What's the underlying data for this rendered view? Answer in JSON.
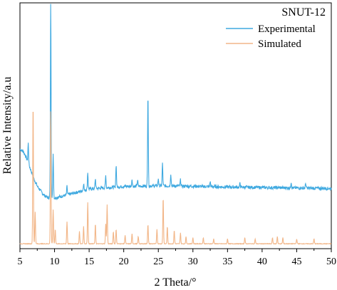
{
  "chart_data": {
    "type": "line",
    "title": "SNUT-12",
    "xlabel": "2 Theta/°",
    "ylabel": "Relative Intensity/a.u",
    "xlim": [
      5,
      50
    ],
    "ylim": [
      0,
      100
    ],
    "y_ticks_shown": false,
    "grid": false,
    "legend_position": "top-right",
    "x_ticks": [
      5,
      10,
      15,
      20,
      25,
      30,
      35,
      40,
      45,
      50
    ],
    "x_tick_labels": [
      "5",
      "10",
      "15",
      "20",
      "25",
      "30",
      "35",
      "40",
      "45",
      "50"
    ],
    "series": [
      {
        "name": "Experimental",
        "color": "#3fa9e0",
        "baseline": [
          [
            5.0,
            40.5
          ],
          [
            5.5,
            39.5
          ],
          [
            6.0,
            36.5
          ],
          [
            6.5,
            32.5
          ],
          [
            7.0,
            28.5
          ],
          [
            7.5,
            25.5
          ],
          [
            8.0,
            23.5
          ],
          [
            8.5,
            21.7
          ],
          [
            9.0,
            20.8
          ],
          [
            10.0,
            20.6
          ],
          [
            12.0,
            22.0
          ],
          [
            15.0,
            24.3
          ],
          [
            20.0,
            25.3
          ],
          [
            25.0,
            25.6
          ],
          [
            30.0,
            25.4
          ],
          [
            35.0,
            25.1
          ],
          [
            40.0,
            24.9
          ],
          [
            45.0,
            24.7
          ],
          [
            50.0,
            24.5
          ]
        ],
        "peaks": [
          [
            6.2,
            8.0
          ],
          [
            9.45,
            80.0
          ],
          [
            9.8,
            18.0
          ],
          [
            11.8,
            3.5
          ],
          [
            14.2,
            3.0
          ],
          [
            14.8,
            7.0
          ],
          [
            15.9,
            4.0
          ],
          [
            17.4,
            5.0
          ],
          [
            18.9,
            9.0
          ],
          [
            21.2,
            3.0
          ],
          [
            22.0,
            2.5
          ],
          [
            23.5,
            38.0
          ],
          [
            25.0,
            3.0
          ],
          [
            25.6,
            9.0
          ],
          [
            26.8,
            5.0
          ],
          [
            28.2,
            2.5
          ],
          [
            32.5,
            2.0
          ],
          [
            36.8,
            1.5
          ],
          [
            44.2,
            2.5
          ],
          [
            46.3,
            2.0
          ]
        ]
      },
      {
        "name": "Simulated",
        "color": "#f2b688",
        "baseline": [
          [
            5.0,
            2.0
          ],
          [
            20.0,
            2.0
          ],
          [
            50.0,
            2.0
          ]
        ],
        "peaks": [
          [
            6.9,
            58.0
          ],
          [
            7.2,
            13.0
          ],
          [
            9.45,
            55.0
          ],
          [
            9.8,
            14.0
          ],
          [
            10.1,
            6.0
          ],
          [
            11.8,
            9.0
          ],
          [
            13.6,
            5.0
          ],
          [
            14.2,
            7.0
          ],
          [
            14.8,
            17.0
          ],
          [
            15.9,
            8.0
          ],
          [
            17.4,
            8.0
          ],
          [
            17.6,
            16.0
          ],
          [
            18.5,
            5.0
          ],
          [
            18.9,
            6.0
          ],
          [
            20.2,
            3.5
          ],
          [
            21.2,
            4.0
          ],
          [
            22.1,
            3.0
          ],
          [
            23.5,
            8.0
          ],
          [
            24.8,
            6.0
          ],
          [
            25.7,
            19.0
          ],
          [
            26.3,
            7.0
          ],
          [
            27.3,
            5.5
          ],
          [
            28.2,
            4.5
          ],
          [
            29.0,
            3.0
          ],
          [
            30.0,
            2.5
          ],
          [
            31.5,
            2.5
          ],
          [
            33.0,
            2.0
          ],
          [
            35.0,
            2.0
          ],
          [
            37.5,
            2.5
          ],
          [
            39.0,
            2.0
          ],
          [
            41.5,
            2.5
          ],
          [
            42.2,
            3.0
          ],
          [
            43.0,
            2.5
          ],
          [
            45.0,
            2.0
          ],
          [
            47.5,
            2.0
          ]
        ]
      }
    ]
  }
}
